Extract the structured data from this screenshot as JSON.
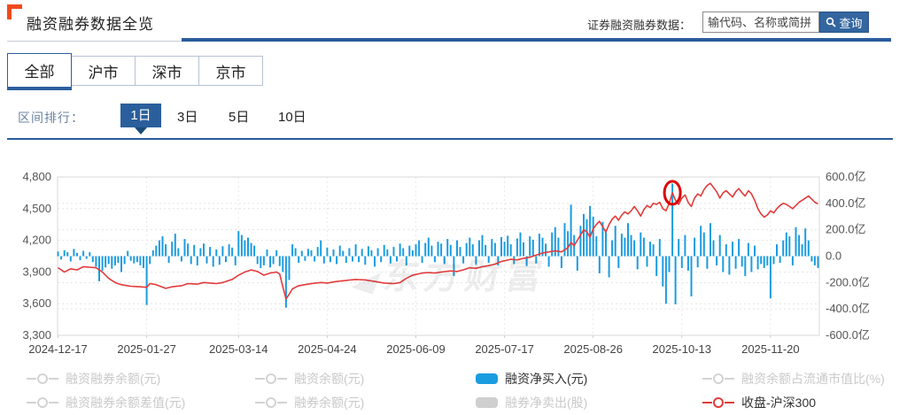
{
  "header": {
    "title": "融资融券数据全览",
    "search_label": "证券融资融券数据：",
    "search_placeholder": "输代码、名称或简拼",
    "search_button": "查询"
  },
  "tabs": [
    {
      "label": "全部",
      "active": true
    },
    {
      "label": "沪市",
      "active": false
    },
    {
      "label": "深市",
      "active": false
    },
    {
      "label": "京市",
      "active": false
    }
  ],
  "range_rank": {
    "label": "区间排行：",
    "options": [
      {
        "label": "1日",
        "active": true
      },
      {
        "label": "3日",
        "active": false
      },
      {
        "label": "5日",
        "active": false
      },
      {
        "label": "10日",
        "active": false
      }
    ]
  },
  "watermark": "东方财富",
  "colors": {
    "accent_blue": "#2a5c9c",
    "bar_blue": "#1b9ce0",
    "line_red": "#e23b3b",
    "annotation_red": "#dd0000",
    "button_blue": "#33659e",
    "icon_orange": "#ef4a1d",
    "disabled_gray": "#cccccc"
  },
  "chart_data": {
    "type": "mixed",
    "total_days": 241,
    "x_tick_labels": [
      "2024-12-17",
      "2025-01-27",
      "2025-03-14",
      "2025-04-24",
      "2025-06-09",
      "2025-07-17",
      "2025-08-26",
      "2025-10-13",
      "2025-11-20"
    ],
    "x_tick_day_index": [
      0,
      28,
      57,
      85,
      113,
      141,
      169,
      197,
      225
    ],
    "left_axis": {
      "min": 3300,
      "max": 4800,
      "tick_values": [
        4800,
        4500,
        4200,
        3900,
        3600,
        3300
      ],
      "tick_labels": [
        "4,800",
        "4,500",
        "4,200",
        "3,900",
        "3,600",
        "3,300"
      ]
    },
    "right_axis": {
      "min": -600,
      "max": 600,
      "tick_values": [
        600,
        400,
        200,
        0,
        -200,
        -400,
        -600
      ],
      "tick_labels": [
        "600.0亿",
        "400.0亿",
        "200.0亿",
        "0.0",
        "-200.0亿",
        "-400.0亿",
        "-600.0亿"
      ],
      "unit": "亿"
    },
    "grid": true,
    "annotation": {
      "type": "circle",
      "day_index": 194,
      "value_left": 4650,
      "color": "#dd0000"
    },
    "series": [
      {
        "name": "融资净买入(元)",
        "type": "bar",
        "axis": "right",
        "color": "#1b9ce0",
        "unit": "亿",
        "values": [
          35,
          -25,
          45,
          30,
          -40,
          55,
          25,
          -30,
          40,
          -20,
          30,
          -45,
          -80,
          -190,
          -110,
          -85,
          -60,
          -95,
          -70,
          -50,
          -120,
          -60,
          40,
          -35,
          -55,
          -45,
          -70,
          -90,
          -370,
          -60,
          45,
          80,
          120,
          150,
          90,
          -50,
          110,
          170,
          60,
          -40,
          130,
          95,
          -60,
          85,
          -70,
          60,
          95,
          -55,
          70,
          -80,
          50,
          -65,
          75,
          -45,
          90,
          65,
          -70,
          190,
          160,
          120,
          140,
          100,
          80,
          -60,
          -90,
          -70,
          50,
          -85,
          -60,
          45,
          -75,
          -120,
          -390,
          -180,
          90,
          60,
          -50,
          40,
          -35,
          55,
          45,
          -40,
          70,
          120,
          -55,
          65,
          -45,
          50,
          -60,
          80,
          40,
          -50,
          60,
          -40,
          90,
          -45,
          55,
          -65,
          75,
          45,
          -80,
          60,
          -45,
          85,
          50,
          -55,
          70,
          -40,
          95,
          60,
          -70,
          80,
          45,
          90,
          120,
          -50,
          100,
          140,
          80,
          -45,
          110,
          95,
          -60,
          130,
          85,
          -150,
          120,
          70,
          -55,
          100,
          140,
          90,
          -65,
          120,
          160,
          85,
          -50,
          130,
          100,
          -70,
          145,
          110,
          155,
          90,
          -60,
          135,
          180,
          105,
          -75,
          150,
          125,
          -55,
          170,
          140,
          95,
          -80,
          180,
          220,
          140,
          -90,
          250,
          190,
          390,
          160,
          -110,
          230,
          320,
          280,
          380,
          300,
          150,
          -130,
          260,
          200,
          -160,
          120,
          230,
          -90,
          170,
          140,
          250,
          160,
          120,
          -100,
          180,
          140,
          -80,
          110,
          90,
          -150,
          130,
          -230,
          -360,
          -120,
          550,
          -365,
          130,
          -90,
          160,
          -110,
          -305,
          140,
          -85,
          230,
          180,
          -95,
          250,
          120,
          -70,
          160,
          -120,
          90,
          -140,
          110,
          -95,
          130,
          -80,
          -150,
          100,
          -120,
          80,
          -100,
          -60,
          -90,
          -70,
          -320,
          -60,
          90,
          -50,
          120,
          180,
          150,
          -70,
          220,
          160,
          90,
          210,
          120,
          -40,
          -70,
          -90
        ]
      },
      {
        "name": "收盘-沪深300",
        "type": "line",
        "axis": "left",
        "color": "#e23b3b",
        "keypoints": [
          [
            0,
            3940
          ],
          [
            2,
            3900
          ],
          [
            4,
            3930
          ],
          [
            6,
            3920
          ],
          [
            8,
            3950
          ],
          [
            10,
            3945
          ],
          [
            12,
            3940
          ],
          [
            14,
            3900
          ],
          [
            16,
            3840
          ],
          [
            18,
            3800
          ],
          [
            20,
            3780
          ],
          [
            23,
            3765
          ],
          [
            26,
            3760
          ],
          [
            28,
            3755
          ],
          [
            29,
            3790
          ],
          [
            31,
            3780
          ],
          [
            34,
            3745
          ],
          [
            36,
            3760
          ],
          [
            39,
            3770
          ],
          [
            41,
            3790
          ],
          [
            44,
            3785
          ],
          [
            46,
            3800
          ],
          [
            48,
            3795
          ],
          [
            50,
            3790
          ],
          [
            52,
            3800
          ],
          [
            55,
            3830
          ],
          [
            57,
            3870
          ],
          [
            59,
            3900
          ],
          [
            61,
            3920
          ],
          [
            63,
            3905
          ],
          [
            65,
            3870
          ],
          [
            67,
            3890
          ],
          [
            69,
            3900
          ],
          [
            70,
            3880
          ],
          [
            71,
            3760
          ],
          [
            72,
            3645
          ],
          [
            73,
            3690
          ],
          [
            74,
            3740
          ],
          [
            76,
            3770
          ],
          [
            78,
            3780
          ],
          [
            80,
            3790
          ],
          [
            83,
            3800
          ],
          [
            85,
            3795
          ],
          [
            88,
            3810
          ],
          [
            91,
            3820
          ],
          [
            94,
            3830
          ],
          [
            97,
            3825
          ],
          [
            100,
            3810
          ],
          [
            103,
            3795
          ],
          [
            106,
            3790
          ],
          [
            108,
            3800
          ],
          [
            110,
            3840
          ],
          [
            112,
            3870
          ],
          [
            115,
            3890
          ],
          [
            117,
            3895
          ],
          [
            119,
            3890
          ],
          [
            121,
            3900
          ],
          [
            124,
            3910
          ],
          [
            126,
            3905
          ],
          [
            128,
            3920
          ],
          [
            130,
            3940
          ],
          [
            132,
            3935
          ],
          [
            134,
            3950
          ],
          [
            136,
            3960
          ],
          [
            138,
            3975
          ],
          [
            140,
            4000
          ],
          [
            143,
            4020
          ],
          [
            145,
            4015
          ],
          [
            147,
            4030
          ],
          [
            149,
            4040
          ],
          [
            151,
            4060
          ],
          [
            153,
            4080
          ],
          [
            155,
            4090
          ],
          [
            157,
            4100
          ],
          [
            159,
            4090
          ],
          [
            161,
            4130
          ],
          [
            162,
            4180
          ],
          [
            163,
            4150
          ],
          [
            164,
            4200
          ],
          [
            165,
            4250
          ],
          [
            166,
            4300
          ],
          [
            167,
            4280
          ],
          [
            168,
            4230
          ],
          [
            169,
            4310
          ],
          [
            170,
            4350
          ],
          [
            171,
            4380
          ],
          [
            172,
            4330
          ],
          [
            173,
            4280
          ],
          [
            174,
            4350
          ],
          [
            175,
            4400
          ],
          [
            176,
            4430
          ],
          [
            177,
            4390
          ],
          [
            178,
            4440
          ],
          [
            179,
            4470
          ],
          [
            180,
            4450
          ],
          [
            181,
            4480
          ],
          [
            182,
            4520
          ],
          [
            183,
            4480
          ],
          [
            184,
            4430
          ],
          [
            185,
            4490
          ],
          [
            186,
            4530
          ],
          [
            187,
            4510
          ],
          [
            188,
            4550
          ],
          [
            189,
            4540
          ],
          [
            190,
            4560
          ],
          [
            191,
            4500
          ],
          [
            192,
            4480
          ],
          [
            193,
            4550
          ],
          [
            194,
            4650
          ],
          [
            195,
            4580
          ],
          [
            196,
            4540
          ],
          [
            197,
            4600
          ],
          [
            198,
            4630
          ],
          [
            199,
            4560
          ],
          [
            200,
            4520
          ],
          [
            201,
            4600
          ],
          [
            202,
            4640
          ],
          [
            203,
            4620
          ],
          [
            204,
            4680
          ],
          [
            205,
            4720
          ],
          [
            206,
            4740
          ],
          [
            207,
            4700
          ],
          [
            208,
            4660
          ],
          [
            209,
            4600
          ],
          [
            210,
            4650
          ],
          [
            211,
            4670
          ],
          [
            212,
            4640
          ],
          [
            213,
            4610
          ],
          [
            214,
            4660
          ],
          [
            215,
            4690
          ],
          [
            216,
            4650
          ],
          [
            217,
            4620
          ],
          [
            218,
            4670
          ],
          [
            219,
            4640
          ],
          [
            220,
            4580
          ],
          [
            221,
            4500
          ],
          [
            222,
            4450
          ],
          [
            223,
            4420
          ],
          [
            224,
            4440
          ],
          [
            225,
            4480
          ],
          [
            226,
            4460
          ],
          [
            227,
            4500
          ],
          [
            228,
            4530
          ],
          [
            229,
            4550
          ],
          [
            230,
            4540
          ],
          [
            231,
            4520
          ],
          [
            232,
            4500
          ],
          [
            233,
            4530
          ],
          [
            234,
            4560
          ],
          [
            235,
            4580
          ],
          [
            236,
            4600
          ],
          [
            237,
            4620
          ],
          [
            238,
            4590
          ],
          [
            239,
            4560
          ],
          [
            240,
            4545
          ]
        ]
      }
    ]
  },
  "legend": {
    "rows": [
      [
        {
          "label": "融资融券余额(元)",
          "marker": "line-circle",
          "color": "#d3d3d3",
          "active": false
        },
        {
          "label": "融资余额(元)",
          "marker": "line-circle",
          "color": "#d3d3d3",
          "active": false
        },
        {
          "label": "融资净买入(元)",
          "marker": "rect",
          "color": "#1b9ce0",
          "active": true
        },
        {
          "label": "融资余额占流通市值比(%)",
          "marker": "line-circle",
          "color": "#d3d3d3",
          "active": false
        }
      ],
      [
        {
          "label": "融资融券余额差值(元)",
          "marker": "line-circle",
          "color": "#d3d3d3",
          "active": false
        },
        {
          "label": "融券余额(元)",
          "marker": "line-circle",
          "color": "#d3d3d3",
          "active": false
        },
        {
          "label": "融券净卖出(股)",
          "marker": "rect",
          "color": "#cfcfcf",
          "active": false
        },
        {
          "label": "收盘-沪深300",
          "marker": "line-circle",
          "color": "#e23b3b",
          "active": true
        }
      ]
    ]
  }
}
